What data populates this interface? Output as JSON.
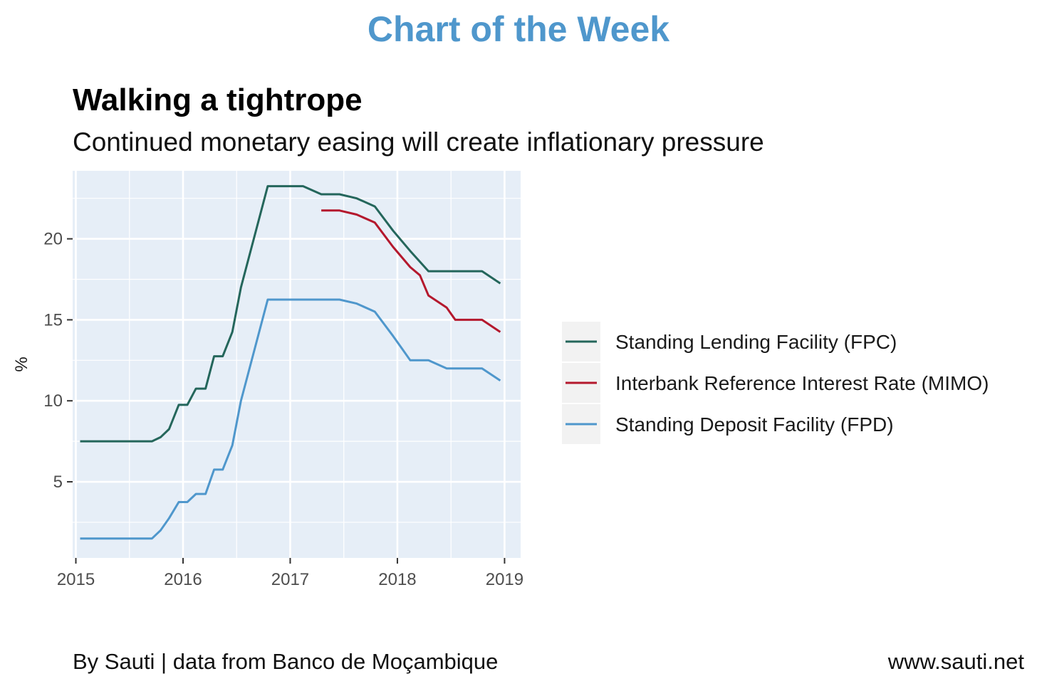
{
  "header": "Chart of the Week",
  "footer": {
    "source": "By Sauti | data from Banco de Moçambique",
    "site": "www.sauti.net"
  },
  "chart_data": {
    "type": "line",
    "title": "Walking a tightrope",
    "subtitle": "Continued monetary easing will create inflationary pressure",
    "xlabel": "",
    "ylabel": "%",
    "xlim": [
      2014.97,
      2019.15
    ],
    "ylim": [
      0.3,
      24.2
    ],
    "x_ticks": [
      2015,
      2016,
      2017,
      2018,
      2019
    ],
    "y_ticks": [
      5,
      10,
      15,
      20
    ],
    "grid": true,
    "legend_position": "right",
    "series": [
      {
        "name": "Standing Lending Facility (FPC)",
        "color": "#24665b",
        "points": [
          [
            2015.04,
            7.5
          ],
          [
            2015.71,
            7.5
          ],
          [
            2015.79,
            7.75
          ],
          [
            2015.87,
            8.25
          ],
          [
            2015.96,
            9.75
          ],
          [
            2016.04,
            9.75
          ],
          [
            2016.12,
            10.75
          ],
          [
            2016.21,
            10.75
          ],
          [
            2016.29,
            12.75
          ],
          [
            2016.37,
            12.75
          ],
          [
            2016.46,
            14.25
          ],
          [
            2016.54,
            17.0
          ],
          [
            2016.79,
            23.25
          ],
          [
            2017.12,
            23.25
          ],
          [
            2017.29,
            22.75
          ],
          [
            2017.46,
            22.75
          ],
          [
            2017.62,
            22.5
          ],
          [
            2017.79,
            22.0
          ],
          [
            2017.96,
            20.5
          ],
          [
            2018.12,
            19.25
          ],
          [
            2018.29,
            18.0
          ],
          [
            2018.62,
            18.0
          ],
          [
            2018.79,
            18.0
          ],
          [
            2018.96,
            17.25
          ]
        ]
      },
      {
        "name": "Interbank Reference Interest Rate (MIMO)",
        "color": "#b4182d",
        "points": [
          [
            2017.29,
            21.75
          ],
          [
            2017.46,
            21.75
          ],
          [
            2017.62,
            21.5
          ],
          [
            2017.79,
            21.0
          ],
          [
            2017.96,
            19.5
          ],
          [
            2018.12,
            18.25
          ],
          [
            2018.21,
            17.75
          ],
          [
            2018.29,
            16.5
          ],
          [
            2018.46,
            15.75
          ],
          [
            2018.54,
            15.0
          ],
          [
            2018.79,
            15.0
          ],
          [
            2018.96,
            14.25
          ]
        ]
      },
      {
        "name": "Standing Deposit Facility (FPD)",
        "color": "#4f97cc",
        "points": [
          [
            2015.04,
            1.5
          ],
          [
            2015.71,
            1.5
          ],
          [
            2015.79,
            2.0
          ],
          [
            2015.87,
            2.75
          ],
          [
            2015.96,
            3.75
          ],
          [
            2016.04,
            3.75
          ],
          [
            2016.12,
            4.25
          ],
          [
            2016.21,
            4.25
          ],
          [
            2016.29,
            5.75
          ],
          [
            2016.37,
            5.75
          ],
          [
            2016.46,
            7.25
          ],
          [
            2016.54,
            10.0
          ],
          [
            2016.79,
            16.25
          ],
          [
            2017.46,
            16.25
          ],
          [
            2017.62,
            16.0
          ],
          [
            2017.79,
            15.5
          ],
          [
            2017.96,
            14.0
          ],
          [
            2018.04,
            13.25
          ],
          [
            2018.12,
            12.5
          ],
          [
            2018.29,
            12.5
          ],
          [
            2018.46,
            12.0
          ],
          [
            2018.79,
            12.0
          ],
          [
            2018.96,
            11.25
          ]
        ]
      }
    ]
  }
}
